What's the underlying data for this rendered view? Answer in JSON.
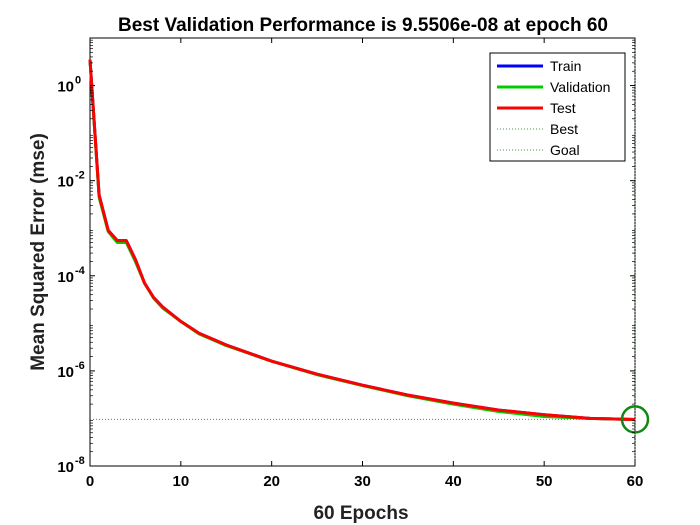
{
  "chart_data": {
    "type": "line",
    "title": "Best Validation Performance is 9.5506e-08 at epoch 60",
    "xlabel": "60 Epochs",
    "ylabel": "Mean Squared Error  (mse)",
    "xlim": [
      0,
      60
    ],
    "ylim": [
      1e-08,
      10
    ],
    "yscale": "log",
    "x_ticks": [
      0,
      10,
      20,
      30,
      40,
      50,
      60
    ],
    "y_ticks": [
      {
        "value": 1.0,
        "base": "10",
        "exp": "0"
      },
      {
        "value": 0.01,
        "base": "10",
        "exp": "-2"
      },
      {
        "value": 0.0001,
        "base": "10",
        "exp": "-4"
      },
      {
        "value": 1e-06,
        "base": "10",
        "exp": "-6"
      },
      {
        "value": 1e-08,
        "base": "10",
        "exp": "-8"
      }
    ],
    "x": [
      0,
      1,
      2,
      3,
      4,
      5,
      6,
      7,
      8,
      10,
      12,
      15,
      20,
      25,
      30,
      35,
      40,
      45,
      50,
      55,
      60
    ],
    "series": [
      {
        "name": "Train",
        "color": "#0000ff",
        "values": [
          3.5,
          0.005,
          0.0009,
          0.00055,
          0.00055,
          0.00022,
          7e-05,
          3.5e-05,
          2.2e-05,
          1.1e-05,
          6.2e-06,
          3.5e-06,
          1.6e-06,
          8.5e-07,
          5e-07,
          3.1e-07,
          2.1e-07,
          1.5e-07,
          1.2e-07,
          1e-07,
          9.5e-08
        ]
      },
      {
        "name": "Validation",
        "color": "#00cc00",
        "values": [
          3.5,
          0.0045,
          0.00085,
          0.0005,
          0.0005,
          0.0002,
          7e-05,
          3.4e-05,
          2.1e-05,
          1.1e-05,
          6e-06,
          3.4e-06,
          1.6e-06,
          8.3e-07,
          4.9e-07,
          3e-07,
          2e-07,
          1.4e-07,
          1.1e-07,
          1e-07,
          9.5e-08
        ]
      },
      {
        "name": "Test",
        "color": "#ff0000",
        "values": [
          3.5,
          0.005,
          0.0009,
          0.00055,
          0.00055,
          0.00022,
          7e-05,
          3.5e-05,
          2.2e-05,
          1.1e-05,
          6.2e-06,
          3.5e-06,
          1.6e-06,
          8.5e-07,
          5e-07,
          3.1e-07,
          2.1e-07,
          1.5e-07,
          1.2e-07,
          1e-07,
          9.5e-08
        ]
      }
    ],
    "reference_lines": [
      {
        "name": "Best",
        "type": "vertical",
        "x": 60,
        "color": "#4d8f4d"
      },
      {
        "name": "Goal",
        "type": "horizontal",
        "y": 9.5506e-08,
        "color": "#4d8f4d"
      }
    ],
    "best_marker": {
      "x": 60,
      "y": 9.5506e-08,
      "color": "#118811"
    },
    "legend": {
      "position": "top-right",
      "entries": [
        "Train",
        "Validation",
        "Test",
        "Best",
        "Goal"
      ]
    },
    "grid": false
  }
}
